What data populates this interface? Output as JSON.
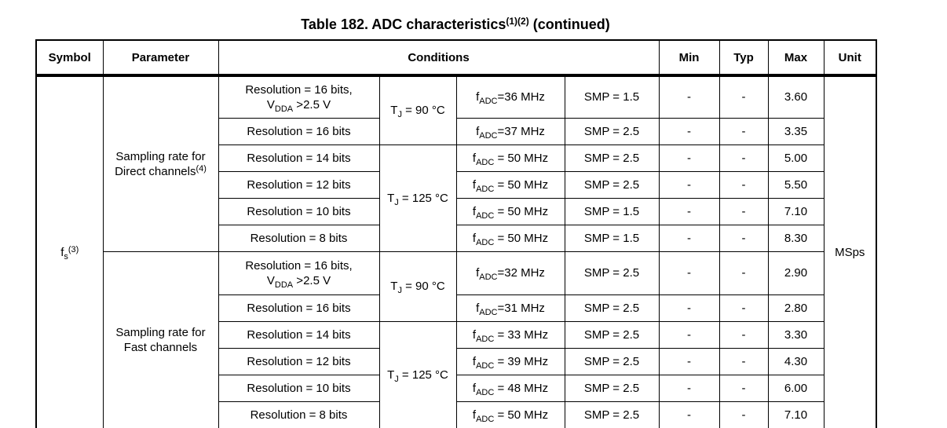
{
  "title": "Table 182. ADC characteristics^{(1)(2)} (continued)",
  "table": {
    "headers": {
      "symbol": "Symbol",
      "parameter": "Parameter",
      "conditions": "Conditions",
      "min": "Min",
      "typ": "Typ",
      "max": "Max",
      "unit": "Unit"
    },
    "symbol": "f_{s}^{(3)}",
    "unit": "MSps",
    "groups": [
      {
        "parameter": "Sampling rate for\nDirect channels^{(4)}",
        "rows": [
          {
            "resolution": "Resolution = 16 bits,\nV_{DDA} >2.5 V",
            "tj": "T_{J} = 90 °C",
            "fadc": "f_{ADC}=36 MHz",
            "smp": "SMP = 1.5",
            "min": "-",
            "typ": "-",
            "max": "3.60"
          },
          {
            "resolution": "Resolution = 16 bits",
            "fadc": "f_{ADC}=37 MHz",
            "smp": "SMP = 2.5",
            "min": "-",
            "typ": "-",
            "max": "3.35"
          },
          {
            "resolution": "Resolution = 14 bits",
            "tj": "T_{J} = 125 °C",
            "fadc": "f_{ADC} = 50 MHz",
            "smp": "SMP = 2.5",
            "min": "-",
            "typ": "-",
            "max": "5.00"
          },
          {
            "resolution": "Resolution = 12 bits",
            "fadc": "f_{ADC} = 50 MHz",
            "smp": "SMP = 2.5",
            "min": "-",
            "typ": "-",
            "max": "5.50"
          },
          {
            "resolution": "Resolution = 10 bits",
            "fadc": "f_{ADC} = 50 MHz",
            "smp": "SMP = 1.5",
            "min": "-",
            "typ": "-",
            "max": "7.10"
          },
          {
            "resolution": "Resolution = 8 bits",
            "fadc": "f_{ADC} = 50 MHz",
            "smp": "SMP = 1.5",
            "min": "-",
            "typ": "-",
            "max": "8.30"
          }
        ]
      },
      {
        "parameter": "Sampling rate for\nFast channels",
        "rows": [
          {
            "resolution": "Resolution = 16 bits,\nV_{DDA} >2.5 V",
            "tj": "T_{J} = 90 °C",
            "fadc": "f_{ADC}=32 MHz",
            "smp": "SMP = 2.5",
            "min": "-",
            "typ": "-",
            "max": "2.90"
          },
          {
            "resolution": "Resolution = 16 bits",
            "fadc": "f_{ADC}=31 MHz",
            "smp": "SMP = 2.5",
            "min": "-",
            "typ": "-",
            "max": "2.80"
          },
          {
            "resolution": "Resolution = 14 bits",
            "tj": "T_{J} = 125 °C",
            "fadc": "f_{ADC} = 33 MHz",
            "smp": "SMP = 2.5",
            "min": "-",
            "typ": "-",
            "max": "3.30"
          },
          {
            "resolution": "Resolution = 12 bits",
            "fadc": "f_{ADC} = 39 MHz",
            "smp": "SMP = 2.5",
            "min": "-",
            "typ": "-",
            "max": "4.30"
          },
          {
            "resolution": "Resolution = 10 bits",
            "fadc": "f_{ADC} = 48 MHz",
            "smp": "SMP = 2.5",
            "min": "-",
            "typ": "-",
            "max": "6.00"
          },
          {
            "resolution": "Resolution = 8 bits",
            "fadc": "f_{ADC} = 50 MHz",
            "smp": "SMP = 2.5",
            "min": "-",
            "typ": "-",
            "max": "7.10"
          }
        ]
      }
    ]
  }
}
